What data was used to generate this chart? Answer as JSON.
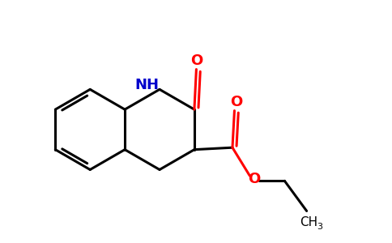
{
  "bg_color": "#ffffff",
  "bond_color": "#000000",
  "N_color": "#0000cc",
  "O_color": "#ff0000",
  "lw": 2.2,
  "figsize": [
    4.84,
    3.0
  ],
  "dpi": 100,
  "xlim": [
    0,
    9.68
  ],
  "ylim": [
    0,
    6.0
  ]
}
